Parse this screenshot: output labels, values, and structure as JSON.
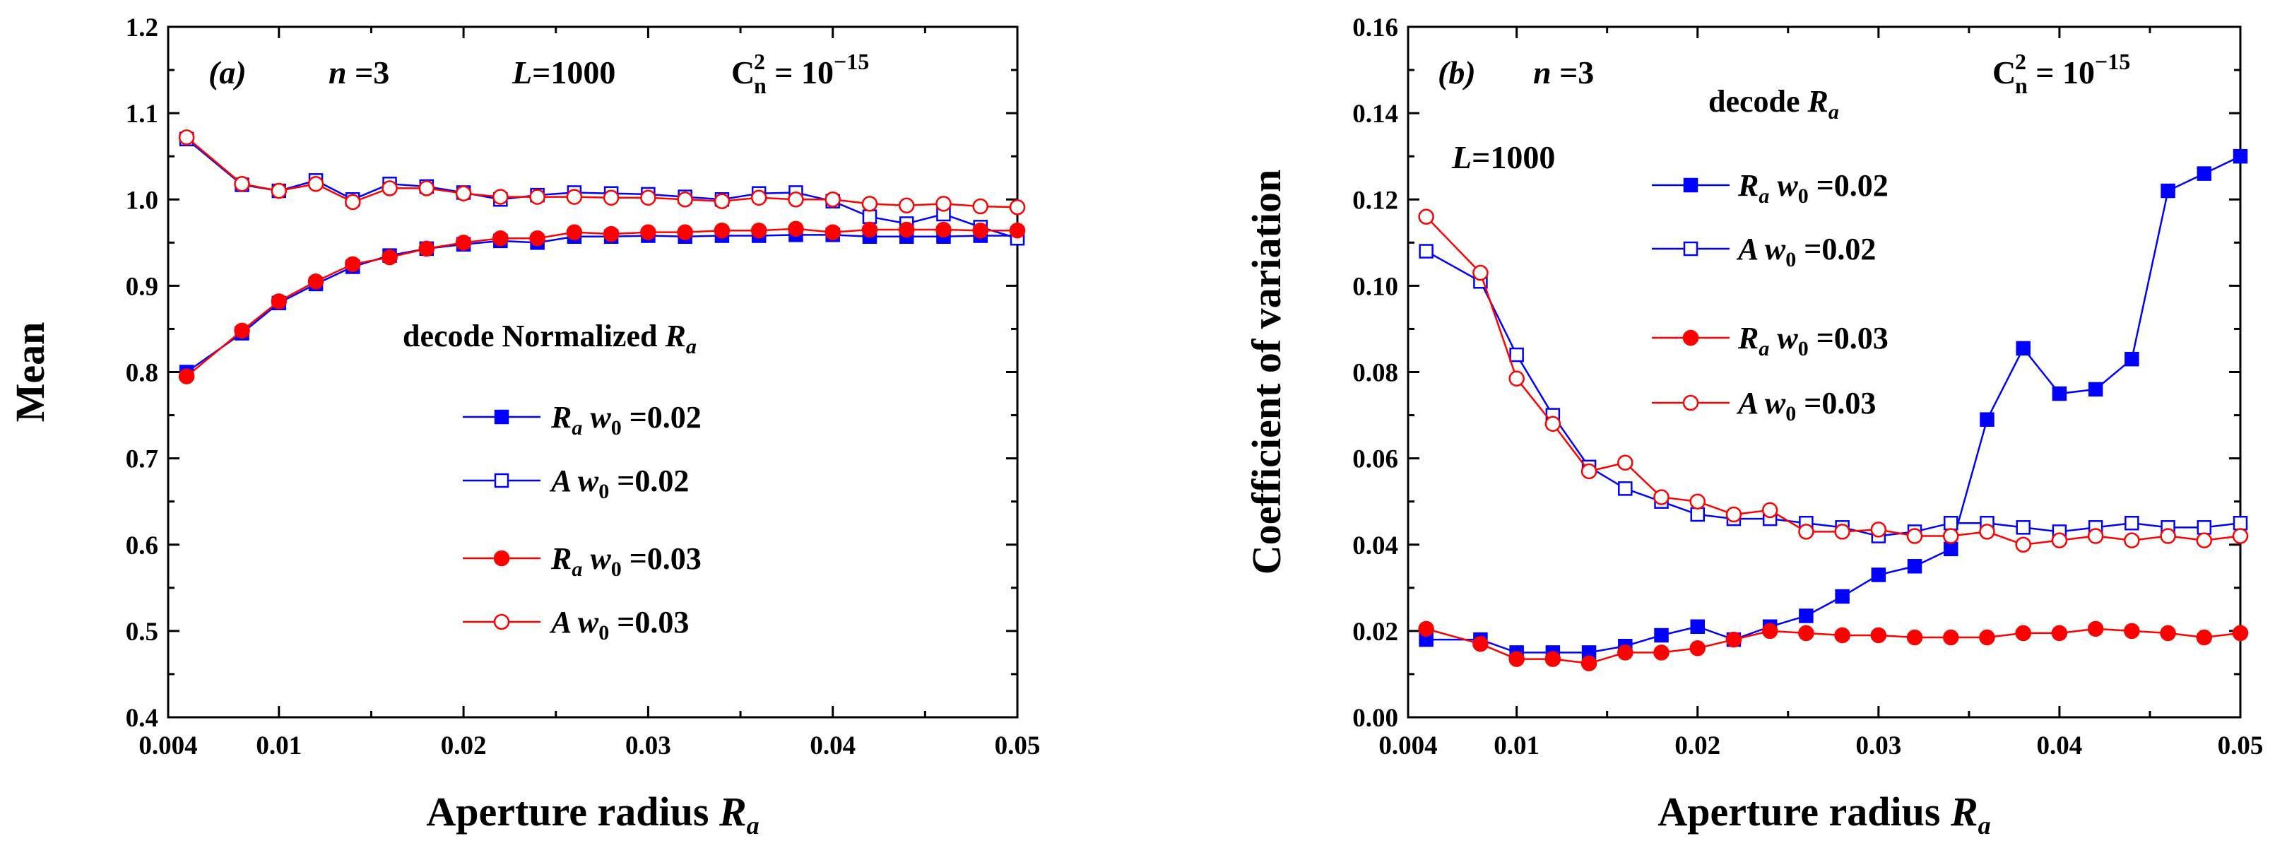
{
  "colors": {
    "blue": "#0000ff",
    "red": "#ff0000",
    "axis": "#000000"
  },
  "chart_data": [
    {
      "type": "line",
      "panel": "(a)",
      "xlabel_main": "Aperture radius",
      "xlabel_sym": "R",
      "xlabel_sub": "a",
      "ylabel": "Mean",
      "xlim": [
        0.004,
        0.05
      ],
      "ylim": [
        0.4,
        1.2
      ],
      "xticks": [
        0.004,
        0.01,
        0.02,
        0.03,
        0.04,
        0.05
      ],
      "xtick_labels": [
        "0.004",
        "0.01",
        "0.02",
        "0.03",
        "0.04",
        "0.05"
      ],
      "yticks": [
        0.4,
        0.5,
        0.6,
        0.7,
        0.8,
        0.9,
        1.0,
        1.1,
        1.2
      ],
      "ytick_labels": [
        "0.4",
        "0.5",
        "0.6",
        "0.7",
        "0.8",
        "0.9",
        "1.0",
        "1.1",
        "1.2"
      ],
      "annotations": {
        "panel_label": "(a)",
        "n_label": "n",
        "n_value": "=3",
        "L_label": "L",
        "L_value": "=1000",
        "cn_label": "C",
        "cn_sup": "2",
        "cn_sub": "n",
        "cn_eq": " = 10",
        "cn_exp": "−15",
        "legend_title": "decode Normalized ",
        "legend_title_sym": "R",
        "legend_title_sub": "a"
      },
      "legend_pos": "center-right",
      "x": [
        0.005,
        0.008,
        0.01,
        0.012,
        0.014,
        0.016,
        0.018,
        0.02,
        0.022,
        0.024,
        0.026,
        0.028,
        0.03,
        0.032,
        0.034,
        0.036,
        0.038,
        0.04,
        0.042,
        0.044,
        0.046,
        0.048,
        0.05
      ],
      "series": [
        {
          "name": "R_a w0=0.02",
          "sym": "R",
          "sub": "a",
          "w": "w",
          "wsub": "0",
          "wval": " =0.02",
          "color": "blue",
          "marker": "square",
          "filled": true,
          "values": [
            0.8,
            0.845,
            0.88,
            0.902,
            0.922,
            0.935,
            0.943,
            0.948,
            0.952,
            0.95,
            0.957,
            0.957,
            0.958,
            0.957,
            0.958,
            0.958,
            0.959,
            0.959,
            0.957,
            0.957,
            0.957,
            0.958,
            0.958
          ]
        },
        {
          "name": "A w0=0.02",
          "sym": "A",
          "sub": "",
          "w": "w",
          "wsub": "0",
          "wval": " =0.02",
          "color": "blue",
          "marker": "square",
          "filled": false,
          "values": [
            1.07,
            1.017,
            1.01,
            1.022,
            1.0,
            1.018,
            1.015,
            1.008,
            1.0,
            1.005,
            1.008,
            1.007,
            1.006,
            1.003,
            1.0,
            1.007,
            1.008,
            0.998,
            0.98,
            0.972,
            0.983,
            0.968,
            0.955
          ]
        },
        {
          "name": "R_a w0=0.03",
          "sym": "R",
          "sub": "a",
          "w": "w",
          "wsub": "0",
          "wval": " =0.03",
          "color": "red",
          "marker": "circle",
          "filled": true,
          "values": [
            0.795,
            0.848,
            0.882,
            0.905,
            0.925,
            0.933,
            0.943,
            0.95,
            0.955,
            0.955,
            0.962,
            0.96,
            0.962,
            0.962,
            0.964,
            0.964,
            0.966,
            0.962,
            0.965,
            0.965,
            0.965,
            0.964,
            0.964
          ]
        },
        {
          "name": "A w0=0.03",
          "sym": "A",
          "sub": "",
          "w": "w",
          "wsub": "0",
          "wval": " =0.03",
          "color": "red",
          "marker": "circle",
          "filled": false,
          "values": [
            1.072,
            1.018,
            1.01,
            1.018,
            0.997,
            1.013,
            1.013,
            1.007,
            1.003,
            1.003,
            1.003,
            1.002,
            1.002,
            1.0,
            0.998,
            1.002,
            1.0,
            1.0,
            0.995,
            0.993,
            0.995,
            0.992,
            0.991
          ]
        }
      ]
    },
    {
      "type": "line",
      "panel": "(b)",
      "xlabel_main": "Aperture radius",
      "xlabel_sym": "R",
      "xlabel_sub": "a",
      "ylabel": "Coefficient of variation",
      "xlim": [
        0.004,
        0.05
      ],
      "ylim": [
        0.0,
        0.16
      ],
      "xticks": [
        0.004,
        0.01,
        0.02,
        0.03,
        0.04,
        0.05
      ],
      "xtick_labels": [
        "0.004",
        "0.01",
        "0.02",
        "0.03",
        "0.04",
        "0.05"
      ],
      "yticks": [
        0.0,
        0.02,
        0.04,
        0.06,
        0.08,
        0.1,
        0.12,
        0.14,
        0.16
      ],
      "ytick_labels": [
        "0.00",
        "0.02",
        "0.04",
        "0.06",
        "0.08",
        "0.10",
        "0.12",
        "0.14",
        "0.16"
      ],
      "annotations": {
        "panel_label": "(b)",
        "n_label": "n",
        "n_value": "=3",
        "L_label": "L",
        "L_value": "=1000",
        "cn_label": "C",
        "cn_sup": "2",
        "cn_sub": "n",
        "cn_eq": " = 10",
        "cn_exp": "−15",
        "legend_title": "decode ",
        "legend_title_sym": "R",
        "legend_title_sub": "a"
      },
      "legend_pos": "top-center",
      "x": [
        0.005,
        0.008,
        0.01,
        0.012,
        0.014,
        0.016,
        0.018,
        0.02,
        0.022,
        0.024,
        0.026,
        0.028,
        0.03,
        0.032,
        0.034,
        0.036,
        0.038,
        0.04,
        0.042,
        0.044,
        0.046,
        0.048,
        0.05
      ],
      "series": [
        {
          "name": "R_a w0=0.02",
          "sym": "R",
          "sub": "a",
          "w": "w",
          "wsub": "0",
          "wval": " =0.02",
          "color": "blue",
          "marker": "square",
          "filled": true,
          "values": [
            0.018,
            0.018,
            0.015,
            0.015,
            0.015,
            0.0165,
            0.019,
            0.021,
            0.018,
            0.021,
            0.0235,
            0.028,
            0.033,
            0.035,
            0.039,
            0.069,
            0.0855,
            0.075,
            0.076,
            0.083,
            0.122,
            0.126,
            0.13
          ]
        },
        {
          "name": "A w0=0.02",
          "sym": "A",
          "sub": "",
          "w": "w",
          "wsub": "0",
          "wval": " =0.02",
          "color": "blue",
          "marker": "square",
          "filled": false,
          "values": [
            0.108,
            0.101,
            0.084,
            0.07,
            0.058,
            0.053,
            0.05,
            0.047,
            0.046,
            0.046,
            0.045,
            0.044,
            0.042,
            0.043,
            0.045,
            0.045,
            0.044,
            0.043,
            0.044,
            0.045,
            0.044,
            0.044,
            0.045
          ]
        },
        {
          "name": "R_a w0=0.03",
          "sym": "R",
          "sub": "a",
          "w": "w",
          "wsub": "0",
          "wval": " =0.03",
          "color": "red",
          "marker": "circle",
          "filled": true,
          "values": [
            0.0205,
            0.017,
            0.0135,
            0.0135,
            0.0125,
            0.015,
            0.015,
            0.016,
            0.018,
            0.02,
            0.0195,
            0.019,
            0.019,
            0.0185,
            0.0185,
            0.0185,
            0.0195,
            0.0195,
            0.0205,
            0.02,
            0.0195,
            0.0185,
            0.0195
          ]
        },
        {
          "name": "A w0=0.03",
          "sym": "A",
          "sub": "",
          "w": "w",
          "wsub": "0",
          "wval": " =0.03",
          "color": "red",
          "marker": "circle",
          "filled": false,
          "values": [
            0.116,
            0.103,
            0.0785,
            0.068,
            0.057,
            0.059,
            0.051,
            0.05,
            0.047,
            0.048,
            0.043,
            0.043,
            0.0435,
            0.042,
            0.042,
            0.043,
            0.04,
            0.041,
            0.042,
            0.041,
            0.042,
            0.041,
            0.042
          ]
        }
      ]
    }
  ]
}
